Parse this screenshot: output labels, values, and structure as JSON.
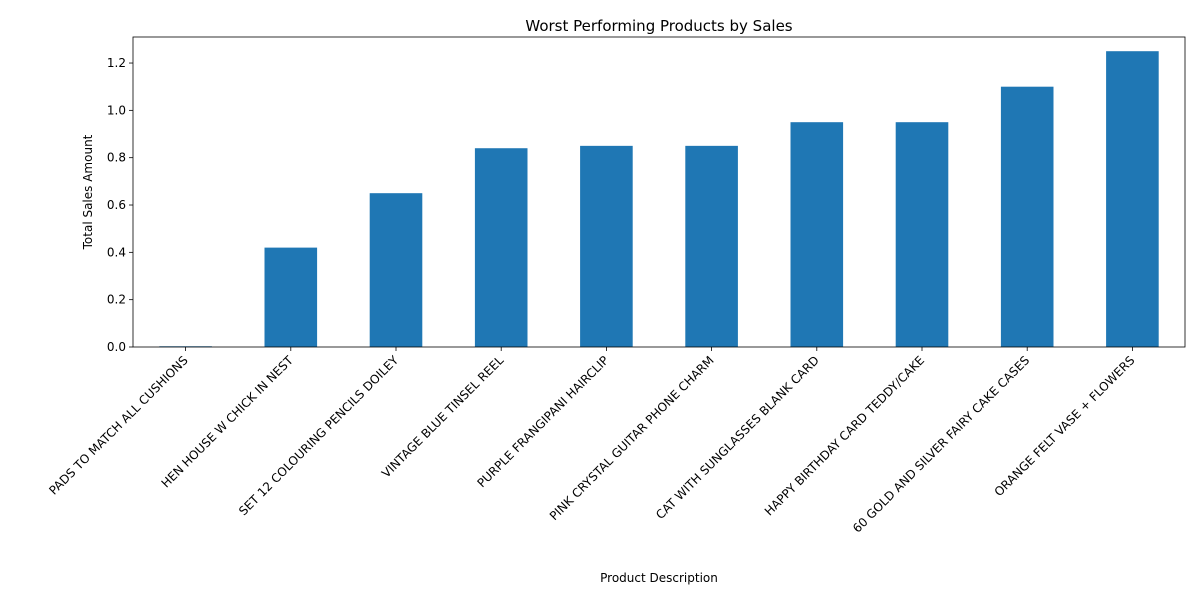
{
  "chart_data": {
    "type": "bar",
    "title": "Worst Performing Products by Sales",
    "xlabel": "Product Description",
    "ylabel": "Total Sales Amount",
    "categories": [
      "PADS TO MATCH ALL CUSHIONS",
      "HEN HOUSE W CHICK IN NEST",
      "SET 12 COLOURING PENCILS DOILEY",
      "VINTAGE BLUE TINSEL REEL",
      "PURPLE FRANGIPANI HAIRCLIP",
      "PINK CRYSTAL GUITAR PHONE CHARM",
      "CAT WITH SUNGLASSES BLANK CARD",
      "HAPPY BIRTHDAY CARD TEDDY/CAKE",
      "60 GOLD AND SILVER FAIRY CAKE CASES",
      "ORANGE FELT VASE + FLOWERS"
    ],
    "values": [
      0.003,
      0.42,
      0.65,
      0.84,
      0.85,
      0.85,
      0.95,
      0.95,
      1.1,
      1.25
    ],
    "ylim": [
      0,
      1.31
    ],
    "yticks": [
      "0.0",
      "0.2",
      "0.4",
      "0.6",
      "0.8",
      "1.0",
      "1.2"
    ],
    "bar_color": "#1f77b4",
    "grid": false,
    "legend": "none"
  }
}
